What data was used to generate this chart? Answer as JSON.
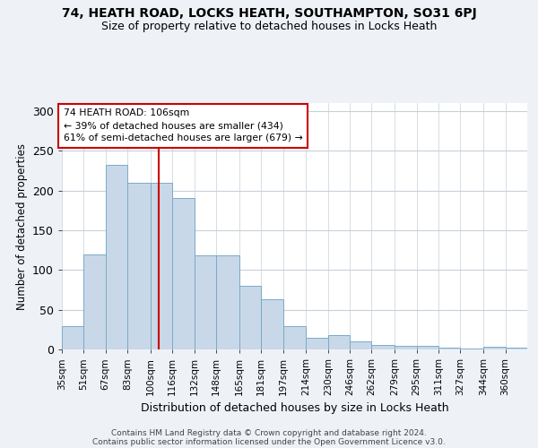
{
  "title_line1": "74, HEATH ROAD, LOCKS HEATH, SOUTHAMPTON, SO31 6PJ",
  "title_line2": "Size of property relative to detached houses in Locks Heath",
  "xlabel": "Distribution of detached houses by size in Locks Heath",
  "ylabel": "Number of detached properties",
  "footer_line1": "Contains HM Land Registry data © Crown copyright and database right 2024.",
  "footer_line2": "Contains public sector information licensed under the Open Government Licence v3.0.",
  "categories": [
    "35sqm",
    "51sqm",
    "67sqm",
    "83sqm",
    "100sqm",
    "116sqm",
    "132sqm",
    "148sqm",
    "165sqm",
    "181sqm",
    "197sqm",
    "214sqm",
    "230sqm",
    "246sqm",
    "262sqm",
    "279sqm",
    "295sqm",
    "311sqm",
    "327sqm",
    "344sqm",
    "360sqm"
  ],
  "bar_vals": [
    29,
    120,
    232,
    210,
    210,
    190,
    118,
    118,
    80,
    63,
    29,
    15,
    18,
    10,
    6,
    5,
    4,
    2,
    1,
    3,
    2
  ],
  "bar_color": "#c8d8e8",
  "bar_edge_color": "#7aaac8",
  "reference_line_x": 106,
  "annotation_title": "74 HEATH ROAD: 106sqm",
  "annotation_line1": "← 39% of detached houses are smaller (434)",
  "annotation_line2": "61% of semi-detached houses are larger (679) →",
  "annotation_box_color": "#ffffff",
  "annotation_box_edge": "#cc0000",
  "reference_line_color": "#cc0000",
  "ylim": [
    0,
    310
  ],
  "yticks": [
    0,
    50,
    100,
    150,
    200,
    250,
    300
  ],
  "left_edges": [
    35,
    51,
    67,
    83,
    100,
    116,
    132,
    148,
    165,
    181,
    197,
    214,
    230,
    246,
    262,
    279,
    295,
    311,
    327,
    344,
    360
  ],
  "background_color": "#eef2f7",
  "plot_background": "#ffffff",
  "grid_color": "#c8d0d8"
}
